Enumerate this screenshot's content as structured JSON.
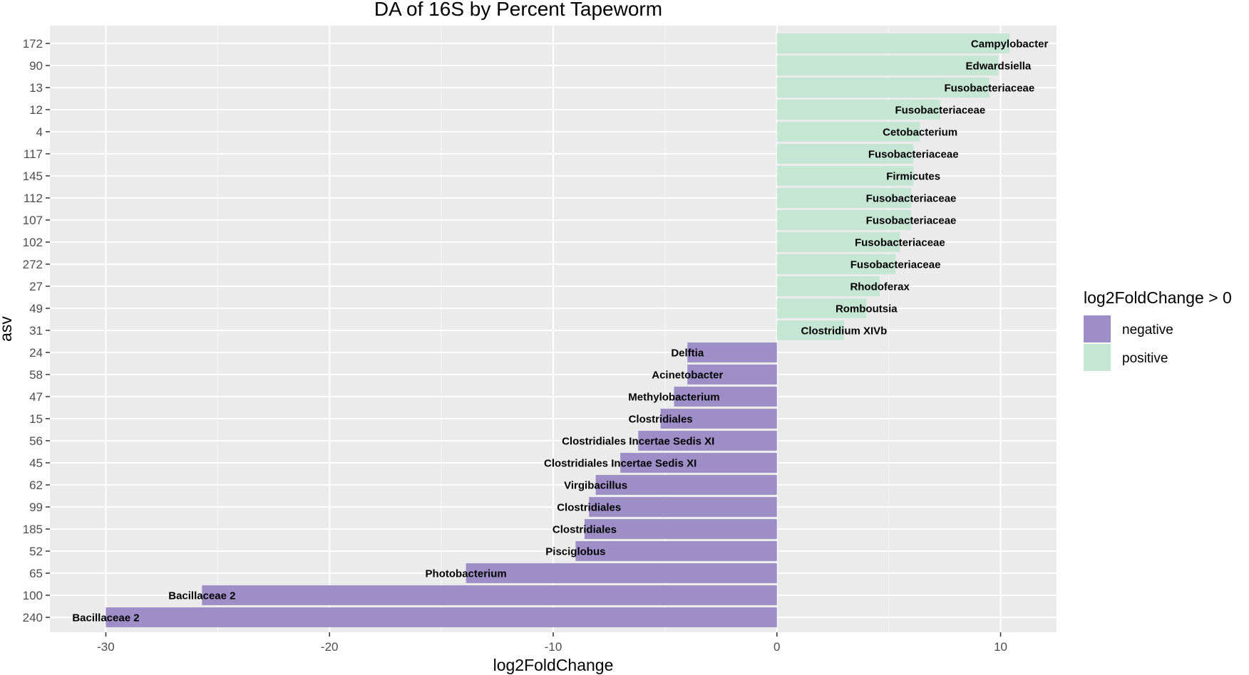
{
  "chart_data": {
    "type": "bar",
    "orientation": "horizontal",
    "title": "DA of 16S by Percent Tapeworm",
    "xlabel": "log2FoldChange",
    "ylabel": "asv",
    "xlim": [
      -32.5,
      12.5
    ],
    "xticks": [
      -30,
      -20,
      -10,
      0,
      10
    ],
    "xtick_labels": [
      "-30",
      "-20",
      "-10",
      "0",
      "10"
    ],
    "grid": true,
    "legend": {
      "title": "log2FoldChange > 0",
      "placement": "right",
      "entries": [
        {
          "label": "negative",
          "color": "#9e8ec8"
        },
        {
          "label": "positive",
          "color": "#c6e6d4"
        }
      ]
    },
    "bars": [
      {
        "asv": "172",
        "value": 10.4,
        "taxon": "Campylobacter"
      },
      {
        "asv": "90",
        "value": 9.9,
        "taxon": "Edwardsiella"
      },
      {
        "asv": "13",
        "value": 9.5,
        "taxon": "Fusobacteriaceae"
      },
      {
        "asv": "12",
        "value": 7.3,
        "taxon": "Fusobacteriaceae"
      },
      {
        "asv": "4",
        "value": 6.4,
        "taxon": "Cetobacterium"
      },
      {
        "asv": "117",
        "value": 6.1,
        "taxon": "Fusobacteriaceae"
      },
      {
        "asv": "145",
        "value": 6.1,
        "taxon": "Firmicutes"
      },
      {
        "asv": "112",
        "value": 6.0,
        "taxon": "Fusobacteriaceae"
      },
      {
        "asv": "107",
        "value": 6.0,
        "taxon": "Fusobacteriaceae"
      },
      {
        "asv": "102",
        "value": 5.5,
        "taxon": "Fusobacteriaceae"
      },
      {
        "asv": "272",
        "value": 5.3,
        "taxon": "Fusobacteriaceae"
      },
      {
        "asv": "27",
        "value": 4.6,
        "taxon": "Rhodoferax"
      },
      {
        "asv": "49",
        "value": 4.0,
        "taxon": "Romboutsia"
      },
      {
        "asv": "31",
        "value": 3.0,
        "taxon": "Clostridium XIVb"
      },
      {
        "asv": "24",
        "value": -4.0,
        "taxon": "Delftia"
      },
      {
        "asv": "58",
        "value": -4.0,
        "taxon": "Acinetobacter"
      },
      {
        "asv": "47",
        "value": -4.6,
        "taxon": "Methylobacterium"
      },
      {
        "asv": "15",
        "value": -5.2,
        "taxon": "Clostridiales"
      },
      {
        "asv": "56",
        "value": -6.2,
        "taxon": "Clostridiales Incertae Sedis XI"
      },
      {
        "asv": "45",
        "value": -7.0,
        "taxon": "Clostridiales Incertae Sedis XI"
      },
      {
        "asv": "62",
        "value": -8.1,
        "taxon": "Virgibacillus"
      },
      {
        "asv": "99",
        "value": -8.4,
        "taxon": "Clostridiales"
      },
      {
        "asv": "185",
        "value": -8.6,
        "taxon": "Clostridiales"
      },
      {
        "asv": "52",
        "value": -9.0,
        "taxon": "Pisciglobus"
      },
      {
        "asv": "65",
        "value": -13.9,
        "taxon": "Photobacterium"
      },
      {
        "asv": "100",
        "value": -25.7,
        "taxon": "Bacillaceae 2"
      },
      {
        "asv": "240",
        "value": -30.0,
        "taxon": "Bacillaceae 2"
      }
    ]
  }
}
